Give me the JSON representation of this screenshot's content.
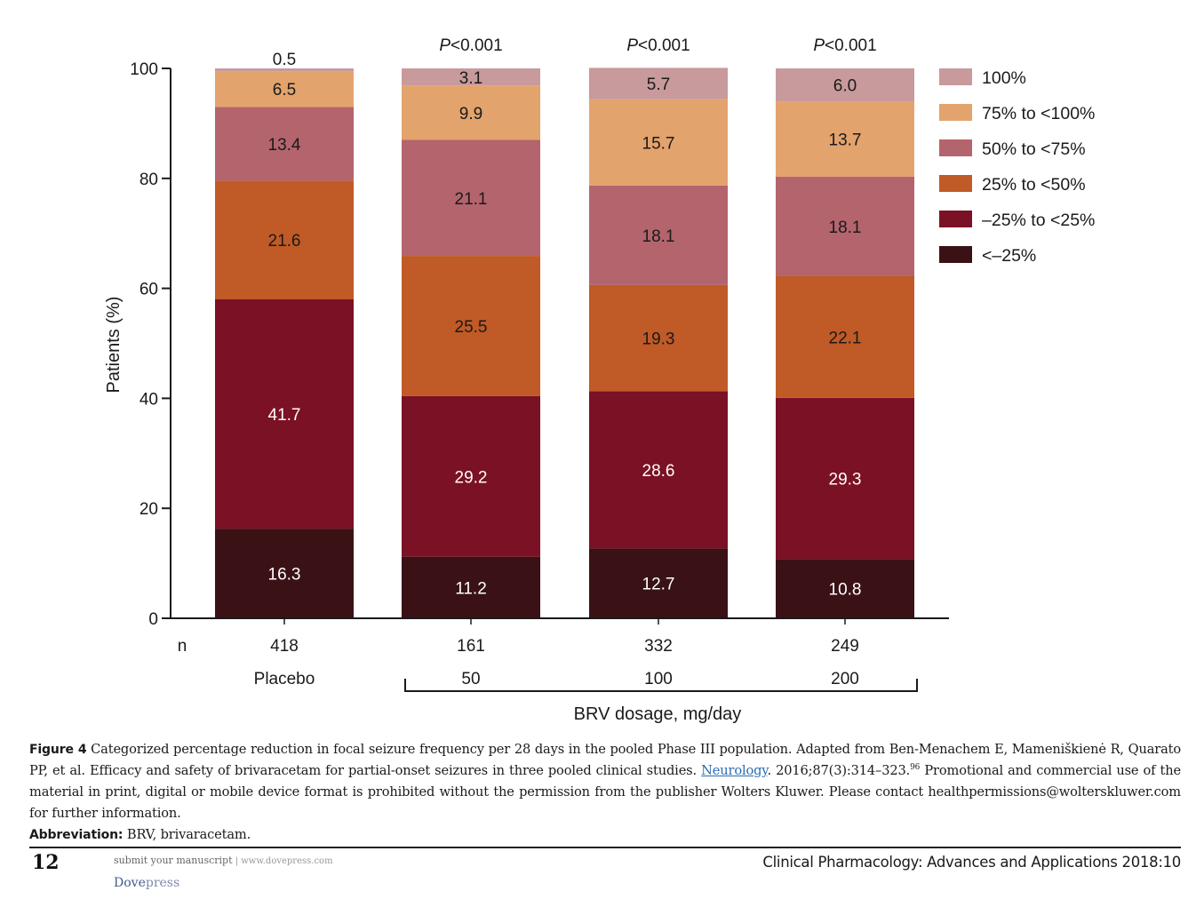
{
  "chart_data": {
    "type": "bar",
    "stacked": true,
    "title": "",
    "xlabel": "BRV dosage, mg/day",
    "ylabel": "Patients (%)",
    "ylim": [
      0,
      100
    ],
    "yticks": [
      0,
      20,
      40,
      60,
      80,
      100
    ],
    "grid": false,
    "legend_position": "right",
    "categories": [
      "Placebo",
      "50",
      "100",
      "200"
    ],
    "n_label": "n",
    "n_values": [
      "418",
      "161",
      "332",
      "249"
    ],
    "p_values": [
      "",
      "P<0.001",
      "P<0.001",
      "P<0.001"
    ],
    "bracket_label_covers": [
      "50",
      "100",
      "200"
    ],
    "series": [
      {
        "name": "<–25%",
        "color": "#3a1216",
        "label_color": "#ffffff",
        "values": [
          16.3,
          11.2,
          12.7,
          10.8
        ]
      },
      {
        "name": "–25% to <25%",
        "color": "#7b1124",
        "label_color": "#ffffff",
        "values": [
          41.7,
          29.2,
          28.6,
          29.3
        ]
      },
      {
        "name": "25% to <50%",
        "color": "#c05a26",
        "label_color": "#1a1a1a",
        "values": [
          21.6,
          25.5,
          19.3,
          22.1
        ]
      },
      {
        "name": "50% to <75%",
        "color": "#b4646d",
        "label_color": "#1a1a1a",
        "values": [
          13.4,
          21.1,
          18.1,
          18.1
        ]
      },
      {
        "name": "75% to <100%",
        "color": "#e3a36c",
        "label_color": "#1a1a1a",
        "values": [
          6.5,
          9.9,
          15.7,
          13.7
        ]
      },
      {
        "name": "100%",
        "color": "#c89a9c",
        "label_color": "#1a1a1a",
        "values": [
          0.5,
          3.1,
          5.7,
          6.0
        ]
      }
    ]
  },
  "caption": {
    "figure_label": "Figure 4",
    "text_before_link": " Categorized percentage reduction in focal seizure frequency per 28 days in the pooled Phase III population. Adapted from Ben-Menachem E, Mameniškienė R, Quarato PP, et al. Efficacy and safety of brivaracetam for partial-onset seizures in three pooled clinical studies. ",
    "link_text": "Neurology",
    "text_after_link": ". 2016;87(3):314–323.",
    "reference_superscript": "96",
    "text_tail": " Promotional and commercial use of the material in print, digital or mobile device format is prohibited without the permission from the publisher Wolters Kluwer. Please contact healthpermissions@wolterskluwer.com for further information.",
    "abbreviation_label": "Abbreviation:",
    "abbreviation_text": " BRV, brivaracetam."
  },
  "footer": {
    "page_number": "12",
    "submit_text": "submit your manuscript",
    "separator": " | ",
    "url_text": "www.dovepress.com",
    "publisher_dove": "Dove",
    "publisher_press": "press",
    "journal": "Clinical Pharmacology: Advances and Applications 2018:10"
  }
}
